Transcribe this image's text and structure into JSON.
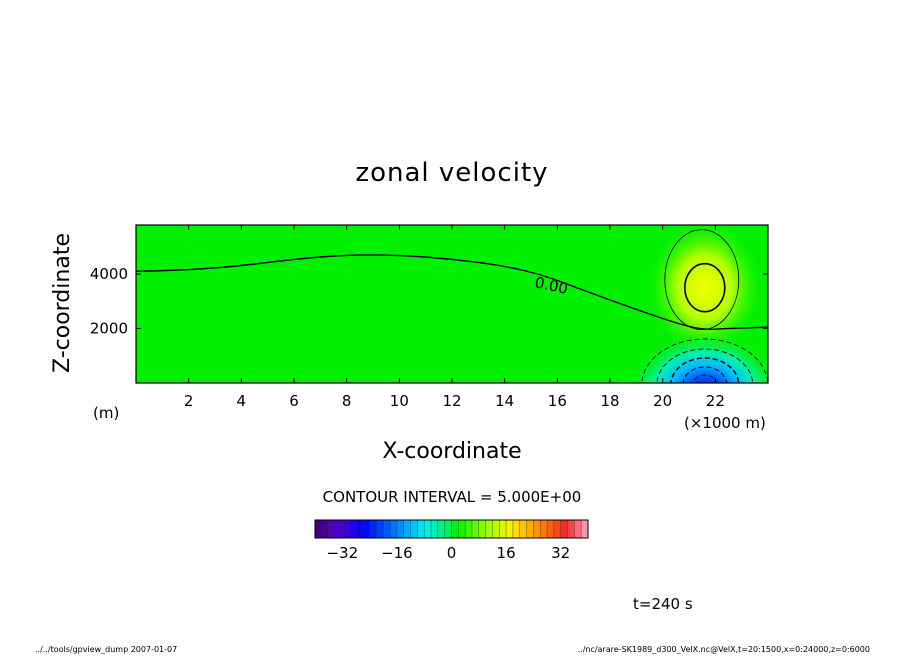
{
  "chart_data": {
    "type": "heatmap",
    "title": "zonal velocity",
    "xlabel": "X-coordinate",
    "ylabel": "Z-coordinate",
    "x_unit": "(m)",
    "x_scale_note": "(×1000 m)",
    "xlim": [
      0,
      24
    ],
    "zlim": [
      0,
      5800
    ],
    "x_ticks": [
      "2",
      "4",
      "6",
      "8",
      "10",
      "12",
      "14",
      "16",
      "18",
      "20",
      "22"
    ],
    "x_tick_values": [
      2,
      4,
      6,
      8,
      10,
      12,
      14,
      16,
      18,
      20,
      22
    ],
    "z_ticks": [
      "2000",
      "4000"
    ],
    "z_tick_values": [
      2000,
      4000
    ],
    "contour_label": "0.00",
    "contour_interval_text": "CONTOUR INTERVAL = 5.000E+00",
    "zero_contour": [
      {
        "x": 0,
        "z": 4100
      },
      {
        "x": 2,
        "z": 4150
      },
      {
        "x": 4,
        "z": 4300
      },
      {
        "x": 6,
        "z": 4550
      },
      {
        "x": 8,
        "z": 4700
      },
      {
        "x": 10,
        "z": 4700
      },
      {
        "x": 12,
        "z": 4550
      },
      {
        "x": 14,
        "z": 4300
      },
      {
        "x": 15.5,
        "z": 3950
      },
      {
        "x": 17,
        "z": 3400
      },
      {
        "x": 19,
        "z": 2700
      },
      {
        "x": 20.5,
        "z": 2200
      },
      {
        "x": 21.5,
        "z": 1950
      },
      {
        "x": 22.5,
        "z": 2000
      },
      {
        "x": 24,
        "z": 2050
      }
    ],
    "features": [
      {
        "sign": "positive",
        "center_x": 21.6,
        "center_z": 3500,
        "peak": 12
      },
      {
        "sign": "negative",
        "center_x": 21.6,
        "center_z": 300,
        "peak": -30
      }
    ],
    "colorbar": {
      "range": [
        -40,
        40
      ],
      "ticks": [
        "-32",
        "-16",
        "0",
        "16",
        "32"
      ],
      "tick_values": [
        -32,
        -16,
        0,
        16,
        32
      ]
    }
  },
  "footer": {
    "time_label": "t=240 s",
    "left_note": "../../tools/gpview_dump 2007-01-07",
    "right_note": "../nc/arare-SK1989_d300_VelX.nc@VelX,t=20:1500,x=0:24000,z=0:6000"
  },
  "colors": {
    "background": "#00f000",
    "positive": "#ffff00",
    "negative": "#0000ff",
    "contour": "#000000"
  }
}
